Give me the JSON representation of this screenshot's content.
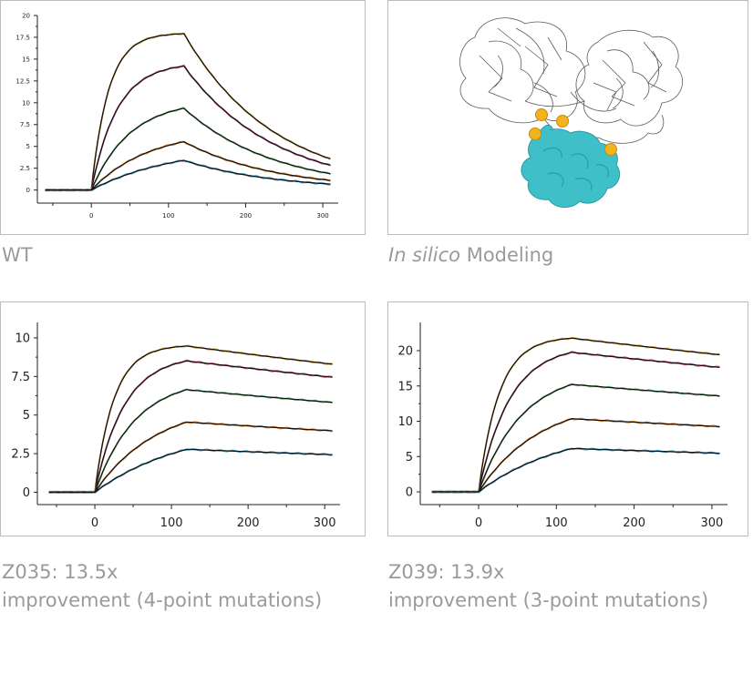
{
  "captions": {
    "wt": "WT",
    "modeling_italic": "In silico",
    "modeling_rest": " Modeling",
    "z035_line1": "Z035: 13.5x",
    "z035_line2": "improvement (4-point mutations)",
    "z039_line1": "Z039: 13.9x",
    "z039_line2": "improvement (3-point mutations)"
  },
  "colors": {
    "fit": "#111111",
    "raw": [
      "#e0a845",
      "#d05a8e",
      "#6fbf7a",
      "#e5862c",
      "#3fa0c8"
    ],
    "protein_surface": "#3fc0c8",
    "mutation_site": "#f2b41e"
  },
  "structure": {
    "mutation_sites": 4
  },
  "chart_data": [
    {
      "id": "wt",
      "type": "line",
      "title": "",
      "xlabel": "",
      "ylabel": "",
      "xlim": [
        -70,
        320
      ],
      "ylim": [
        -1.5,
        20
      ],
      "xticks": [
        "0",
        "100",
        "200",
        "300"
      ],
      "xtick_values": [
        0,
        100,
        200,
        300
      ],
      "yticks": [
        "0",
        "2.5",
        "5",
        "7.5",
        "10",
        "12.5",
        "15",
        "17.5",
        "20"
      ],
      "ytick_values": [
        0,
        2.5,
        5,
        7.5,
        10,
        12.5,
        15,
        17.5,
        20
      ],
      "tick_font": 7,
      "association_end": 120,
      "x_start": -60,
      "x_end": 310,
      "kon_rate": 0.045,
      "koff": 0.0085,
      "series": [
        {
          "plateau": 18.0,
          "rate": 0.045
        },
        {
          "plateau": 14.6,
          "rate": 0.03
        },
        {
          "plateau": 10.3,
          "rate": 0.02
        },
        {
          "plateau": 6.9,
          "rate": 0.0135
        },
        {
          "plateau": 5.0,
          "rate": 0.0095
        }
      ]
    },
    {
      "id": "z035",
      "type": "line",
      "title": "",
      "xlabel": "",
      "ylabel": "",
      "xlim": [
        -75,
        320
      ],
      "ylim": [
        -0.8,
        11
      ],
      "xticks": [
        "0",
        "100",
        "200",
        "300"
      ],
      "xtick_values": [
        0,
        100,
        200,
        300
      ],
      "yticks": [
        "0",
        "2.5",
        "5",
        "7.5",
        "10"
      ],
      "ytick_values": [
        0,
        2.5,
        5,
        7.5,
        10
      ],
      "tick_font": 13,
      "association_end": 120,
      "x_start": -60,
      "x_end": 310,
      "koff": 0.0007,
      "series": [
        {
          "plateau": 9.55,
          "rate": 0.04
        },
        {
          "plateau": 8.9,
          "rate": 0.026
        },
        {
          "plateau": 7.4,
          "rate": 0.019
        },
        {
          "plateau": 5.85,
          "rate": 0.0125
        },
        {
          "plateau": 4.35,
          "rate": 0.0085
        }
      ]
    },
    {
      "id": "z039",
      "type": "line",
      "title": "",
      "xlabel": "",
      "ylabel": "",
      "xlim": [
        -75,
        320
      ],
      "ylim": [
        -1.8,
        24
      ],
      "xticks": [
        "0",
        "100",
        "200",
        "300"
      ],
      "xtick_values": [
        0,
        100,
        200,
        300
      ],
      "yticks": [
        "0",
        "5",
        "10",
        "15",
        "20"
      ],
      "ytick_values": [
        0,
        5,
        10,
        15,
        20
      ],
      "tick_font": 13,
      "association_end": 120,
      "x_start": -60,
      "x_end": 310,
      "koff": 0.0006,
      "series": [
        {
          "plateau": 22.0,
          "rate": 0.038
        },
        {
          "plateau": 20.8,
          "rate": 0.025
        },
        {
          "plateau": 17.2,
          "rate": 0.018
        },
        {
          "plateau": 13.2,
          "rate": 0.0128
        },
        {
          "plateau": 9.3,
          "rate": 0.009
        }
      ]
    }
  ]
}
